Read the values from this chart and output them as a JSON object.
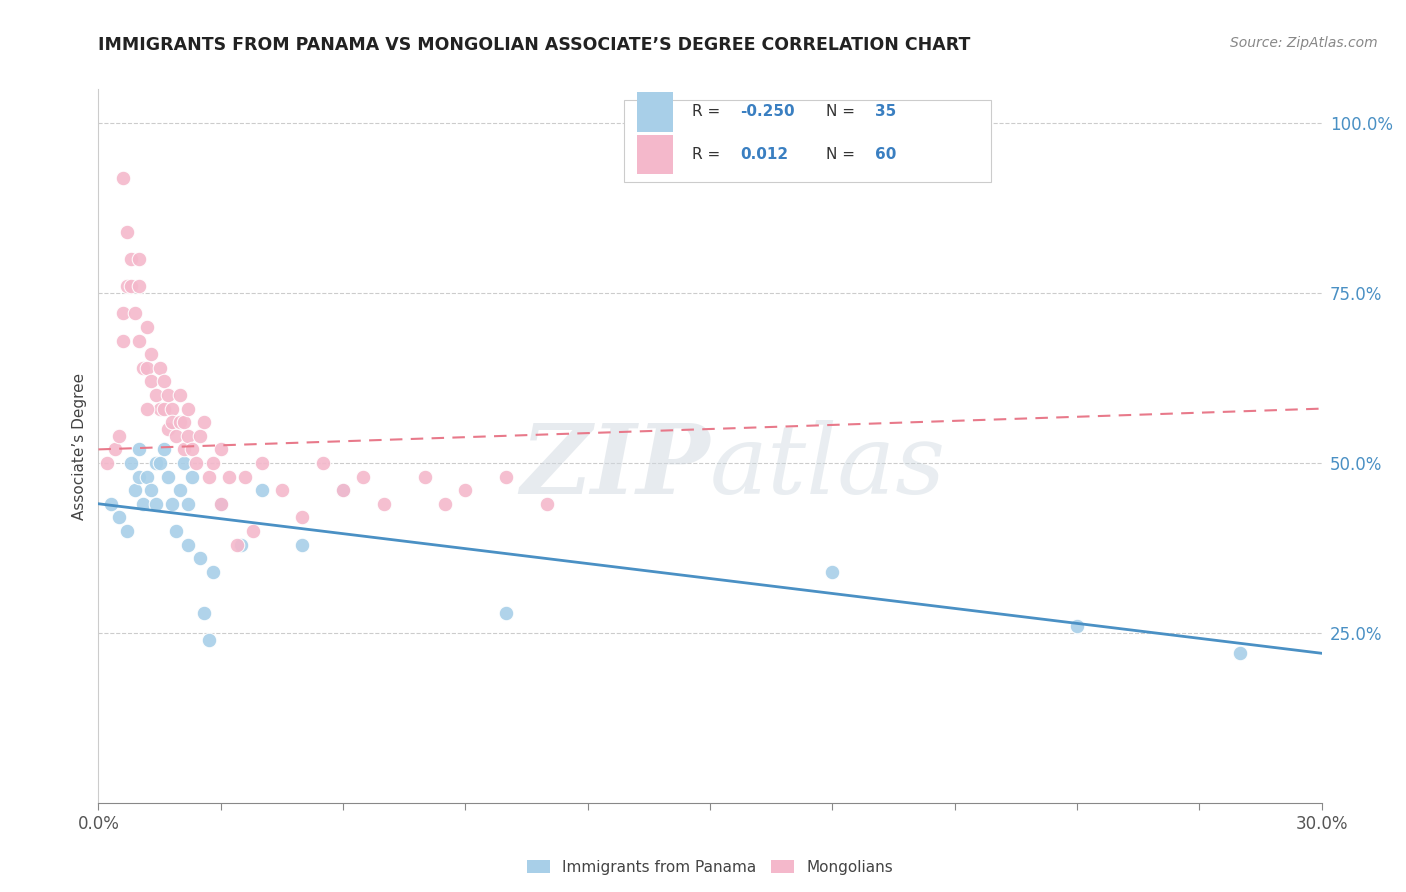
{
  "title": "IMMIGRANTS FROM PANAMA VS MONGOLIAN ASSOCIATE’S DEGREE CORRELATION CHART",
  "source": "Source: ZipAtlas.com",
  "ylabel": "Associate’s Degree",
  "right_yticks": [
    "100.0%",
    "75.0%",
    "50.0%",
    "25.0%"
  ],
  "right_ytick_vals": [
    1.0,
    0.75,
    0.5,
    0.25
  ],
  "blue_color": "#a8cfe8",
  "pink_color": "#f4b8cb",
  "blue_line_color": "#4a90c4",
  "pink_line_color": "#e8798a",
  "watermark_zip": "ZIP",
  "watermark_atlas": "atlas",
  "xmin": 0.0,
  "xmax": 0.3,
  "ymin": 0.0,
  "ymax": 1.05,
  "blue_scatter_x": [
    0.003,
    0.005,
    0.007,
    0.008,
    0.009,
    0.01,
    0.01,
    0.011,
    0.012,
    0.013,
    0.014,
    0.014,
    0.015,
    0.016,
    0.017,
    0.018,
    0.019,
    0.02,
    0.021,
    0.022,
    0.022,
    0.023,
    0.025,
    0.026,
    0.027,
    0.028,
    0.03,
    0.035,
    0.04,
    0.05,
    0.06,
    0.1,
    0.18,
    0.24,
    0.28
  ],
  "blue_scatter_y": [
    0.44,
    0.42,
    0.4,
    0.5,
    0.46,
    0.48,
    0.52,
    0.44,
    0.48,
    0.46,
    0.5,
    0.44,
    0.5,
    0.52,
    0.48,
    0.44,
    0.4,
    0.46,
    0.5,
    0.38,
    0.44,
    0.48,
    0.36,
    0.28,
    0.24,
    0.34,
    0.44,
    0.38,
    0.46,
    0.38,
    0.46,
    0.28,
    0.34,
    0.26,
    0.22
  ],
  "pink_scatter_x": [
    0.002,
    0.004,
    0.005,
    0.006,
    0.006,
    0.007,
    0.008,
    0.008,
    0.009,
    0.01,
    0.01,
    0.01,
    0.011,
    0.012,
    0.012,
    0.013,
    0.013,
    0.014,
    0.015,
    0.015,
    0.016,
    0.016,
    0.017,
    0.017,
    0.018,
    0.018,
    0.019,
    0.02,
    0.02,
    0.021,
    0.021,
    0.022,
    0.022,
    0.023,
    0.024,
    0.025,
    0.026,
    0.027,
    0.028,
    0.03,
    0.03,
    0.032,
    0.034,
    0.036,
    0.038,
    0.04,
    0.045,
    0.05,
    0.055,
    0.06,
    0.065,
    0.07,
    0.08,
    0.085,
    0.09,
    0.1,
    0.11,
    0.012,
    0.007,
    0.006
  ],
  "pink_scatter_y": [
    0.5,
    0.52,
    0.54,
    0.68,
    0.72,
    0.76,
    0.76,
    0.8,
    0.72,
    0.8,
    0.76,
    0.68,
    0.64,
    0.64,
    0.7,
    0.62,
    0.66,
    0.6,
    0.58,
    0.64,
    0.58,
    0.62,
    0.55,
    0.6,
    0.58,
    0.56,
    0.54,
    0.56,
    0.6,
    0.56,
    0.52,
    0.54,
    0.58,
    0.52,
    0.5,
    0.54,
    0.56,
    0.48,
    0.5,
    0.52,
    0.44,
    0.48,
    0.38,
    0.48,
    0.4,
    0.5,
    0.46,
    0.42,
    0.5,
    0.46,
    0.48,
    0.44,
    0.48,
    0.44,
    0.46,
    0.48,
    0.44,
    0.58,
    0.84,
    0.92
  ],
  "blue_line_x": [
    0.0,
    0.3
  ],
  "blue_line_y": [
    0.44,
    0.22
  ],
  "pink_line_x": [
    0.0,
    0.3
  ],
  "pink_line_y": [
    0.52,
    0.58
  ]
}
